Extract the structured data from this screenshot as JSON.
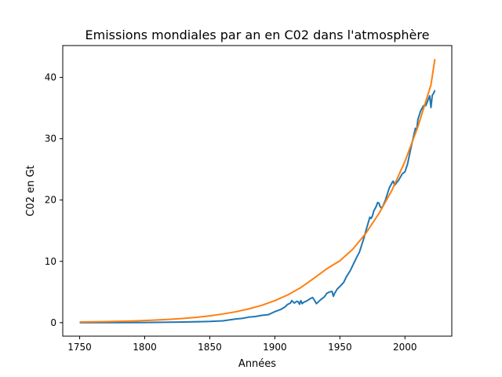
{
  "chart_data": {
    "type": "line",
    "title": "Emissions mondiales par an en C02 dans l'atmosphère",
    "xlabel": "Années",
    "ylabel": "C02 en Gt",
    "xlim": [
      1737,
      2036
    ],
    "ylim": [
      -2.2,
      45.2
    ],
    "x_ticks": [
      1750,
      1800,
      1850,
      1900,
      1950,
      2000
    ],
    "y_ticks": [
      0,
      10,
      20,
      30,
      40
    ],
    "grid": false,
    "legend": "none",
    "series": [
      {
        "color": "#1f77b4",
        "x": [
          1750,
          1800,
          1830,
          1850,
          1860,
          1870,
          1875,
          1880,
          1885,
          1890,
          1895,
          1900,
          1905,
          1908,
          1910,
          1912,
          1913,
          1915,
          1917,
          1918,
          1919,
          1920,
          1921,
          1922,
          1925,
          1927,
          1929,
          1930,
          1932,
          1933,
          1935,
          1938,
          1939,
          1940,
          1942,
          1944,
          1945,
          1946,
          1948,
          1950,
          1953,
          1955,
          1958,
          1960,
          1963,
          1965,
          1968,
          1970,
          1973,
          1974,
          1975,
          1976,
          1978,
          1979,
          1980,
          1981,
          1982,
          1983,
          1985,
          1988,
          1990,
          1991,
          1992,
          1995,
          1998,
          2000,
          2002,
          2005,
          2008,
          2009,
          2010,
          2012,
          2014,
          2015,
          2016,
          2019,
          2020,
          2021,
          2022,
          2023
        ],
        "y": [
          0.01,
          0.03,
          0.1,
          0.2,
          0.3,
          0.6,
          0.7,
          0.9,
          1.0,
          1.2,
          1.3,
          1.8,
          2.2,
          2.6,
          3.0,
          3.2,
          3.6,
          3.2,
          3.5,
          3.4,
          3.0,
          3.6,
          3.1,
          3.3,
          3.6,
          3.9,
          4.1,
          3.8,
          3.1,
          3.3,
          3.7,
          4.2,
          4.5,
          4.8,
          5.0,
          5.1,
          4.3,
          4.8,
          5.5,
          5.9,
          6.6,
          7.5,
          8.5,
          9.4,
          10.7,
          11.5,
          13.5,
          15.0,
          17.2,
          17.0,
          17.4,
          18.2,
          19.0,
          19.6,
          19.5,
          18.9,
          18.7,
          19.0,
          20.0,
          22.0,
          22.8,
          23.1,
          22.4,
          23.2,
          24.3,
          24.6,
          25.9,
          28.9,
          31.7,
          31.4,
          33.2,
          34.5,
          35.3,
          35.5,
          35.4,
          37.0,
          35.1,
          37.1,
          37.4,
          37.9
        ]
      },
      {
        "color": "#ff7f0e",
        "x": [
          1750,
          1760,
          1770,
          1780,
          1790,
          1800,
          1810,
          1820,
          1830,
          1840,
          1850,
          1860,
          1870,
          1880,
          1890,
          1900,
          1910,
          1920,
          1930,
          1940,
          1950,
          1960,
          1970,
          1980,
          1990,
          2000,
          2010,
          2020,
          2023
        ],
        "y": [
          0.11,
          0.14,
          0.17,
          0.22,
          0.27,
          0.35,
          0.44,
          0.55,
          0.7,
          0.88,
          1.12,
          1.41,
          1.78,
          2.25,
          2.84,
          3.59,
          4.54,
          5.73,
          7.24,
          8.8,
          10.1,
          12.0,
          14.6,
          17.8,
          21.6,
          26.3,
          32.0,
          38.8,
          43.0
        ]
      }
    ]
  }
}
